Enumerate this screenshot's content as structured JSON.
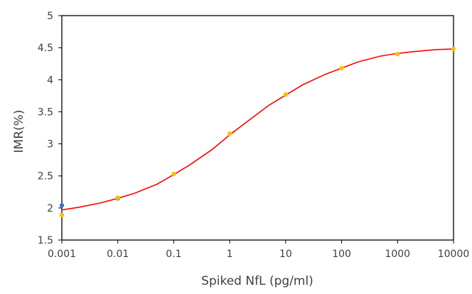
{
  "chart_data": {
    "type": "scatter",
    "title": "",
    "xlabel": "Spiked NfL (pg/ml)",
    "ylabel": "IMR(%)",
    "x_scale": "log",
    "xlim": [
      0.001,
      10000
    ],
    "ylim": [
      1.5,
      5
    ],
    "x_ticks": [
      0.001,
      0.01,
      0.1,
      1,
      10,
      100,
      1000,
      10000
    ],
    "x_tick_labels": [
      "0.001",
      "0.01",
      "0.1",
      "1",
      "10",
      "100",
      "1000",
      "10000"
    ],
    "y_ticks": [
      1.5,
      2,
      2.5,
      3,
      3.5,
      4,
      4.5,
      5
    ],
    "y_tick_labels": [
      "1.5",
      "2",
      "2.5",
      "3",
      "3.5",
      "4",
      "4.5",
      "5"
    ],
    "grid": false,
    "legend": "none",
    "series": [
      {
        "kind": "points",
        "color": "#4472C4",
        "x": [
          0.001,
          0.01
        ],
        "y": [
          2.04,
          2.15
        ]
      },
      {
        "kind": "points",
        "color": "#FFC000",
        "x": [
          0.001,
          0.01,
          0.1,
          1,
          10,
          100,
          1000,
          10000
        ],
        "y": [
          1.89,
          2.16,
          2.53,
          3.16,
          3.77,
          4.18,
          4.4,
          4.48
        ]
      },
      {
        "kind": "fit-curve",
        "color": "#FF0000",
        "x": [
          0.001,
          0.002,
          0.005,
          0.01,
          0.02,
          0.05,
          0.1,
          0.2,
          0.5,
          1,
          2,
          5,
          10,
          20,
          50,
          100,
          200,
          500,
          1000,
          2000,
          5000,
          10000
        ],
        "y": [
          1.97,
          2.01,
          2.08,
          2.15,
          2.23,
          2.37,
          2.52,
          2.68,
          2.92,
          3.14,
          3.34,
          3.6,
          3.76,
          3.92,
          4.08,
          4.18,
          4.28,
          4.37,
          4.41,
          4.44,
          4.47,
          4.48
        ]
      }
    ]
  }
}
